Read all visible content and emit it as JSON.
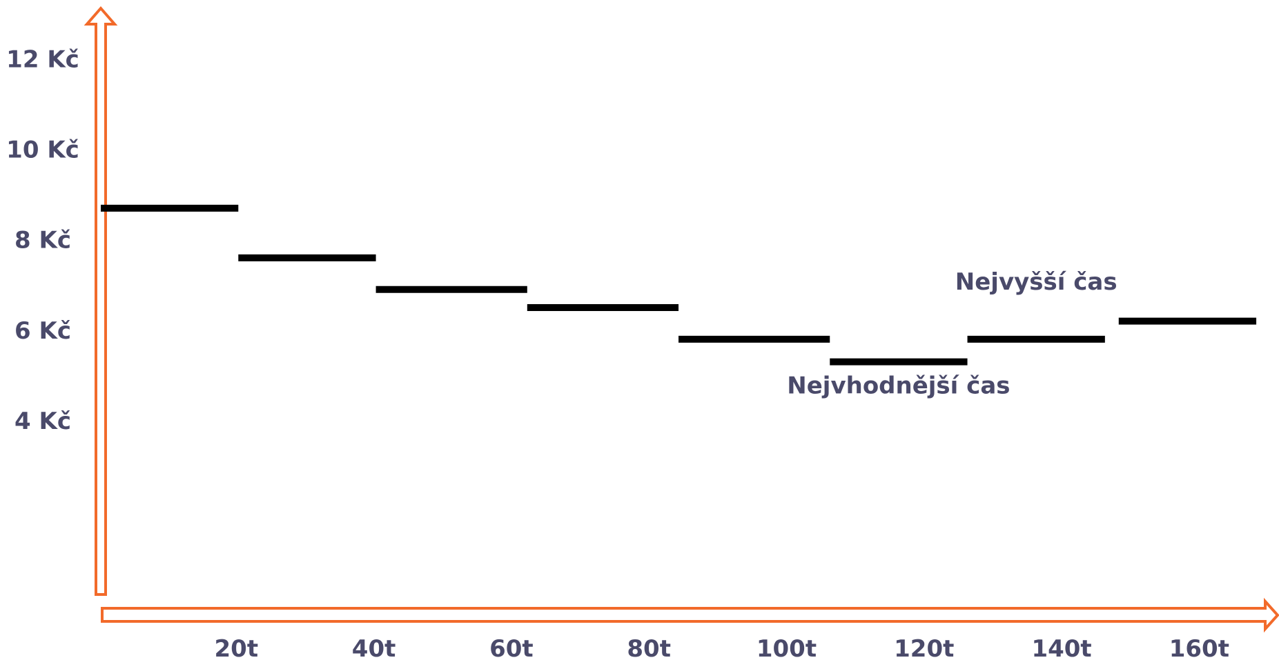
{
  "chart_data": {
    "type": "line",
    "y_ticks": [
      "12 Kč",
      "10 Kč",
      "8 Kč",
      "6 Kč",
      "4 Kč"
    ],
    "y_tick_values": [
      12,
      10,
      8,
      6,
      4
    ],
    "x_ticks": [
      "20t",
      "40t",
      "60t",
      "80t",
      "100t",
      "120t",
      "140t",
      "160t"
    ],
    "x_tick_values": [
      20,
      40,
      60,
      80,
      100,
      120,
      140,
      160
    ],
    "xlim": [
      0,
      170
    ],
    "ylim": [
      0,
      13
    ],
    "grid": false,
    "legend": "none",
    "segments": [
      {
        "x_start": 0,
        "x_end": 20,
        "y": 8.7
      },
      {
        "x_start": 20,
        "x_end": 40,
        "y": 7.6
      },
      {
        "x_start": 40,
        "x_end": 62,
        "y": 6.9
      },
      {
        "x_start": 62,
        "x_end": 84,
        "y": 6.5
      },
      {
        "x_start": 84,
        "x_end": 106,
        "y": 5.8
      },
      {
        "x_start": 106,
        "x_end": 126,
        "y": 5.3
      },
      {
        "x_start": 126,
        "x_end": 146,
        "y": 5.8
      },
      {
        "x_start": 148,
        "x_end": 168,
        "y": 6.2
      }
    ],
    "annotations": [
      {
        "text": "Nejvyšší čas",
        "x": 136,
        "y": 6.9
      },
      {
        "text": "Nejvhodnější čas",
        "x": 116,
        "y": 4.6
      }
    ],
    "colors": {
      "axis": "#F26A2A",
      "segment": "#000000",
      "text": "#4A4A6A"
    }
  }
}
